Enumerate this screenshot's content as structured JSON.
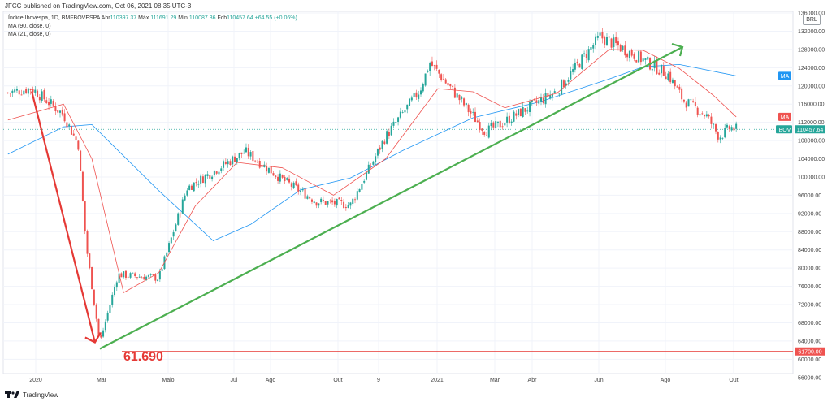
{
  "header": {
    "published": "JFCC published on TradingView.com, Oct 06, 2021 08:35 UTC-3",
    "symbol_line": "Índice Ibovespa, 1D, BMFBOVESPA",
    "ohlc": [
      {
        "label": "Abr",
        "value": "110397.37"
      },
      {
        "label": "Máx.",
        "value": "111691.29"
      },
      {
        "label": "Mín.",
        "value": "110087.36"
      },
      {
        "label": "Fch",
        "value": "110457.64"
      }
    ],
    "change": "+64.55 (+0.06%)",
    "ma90": "MA (90, close, 0)",
    "ma21": "MA (21, close, 0)"
  },
  "currency": "BRL",
  "annotation": {
    "low_label": "61.690"
  },
  "price_tags": {
    "ma_upper": "MA",
    "ma_lower": "MA",
    "ibov": "IBOV",
    "ibov_value": "110457.64",
    "support_value": "61700.00"
  },
  "footer": {
    "brand": "TradingView"
  },
  "colors": {
    "up": "#26a69a",
    "down": "#ef5350",
    "ma21": "#ef5350",
    "ma90": "#2196f3",
    "trendline": "#4caf50",
    "arrow": "#e53935"
  },
  "chart_data": {
    "type": "candlestick",
    "title": "Índice Ibovespa, 1D, BMFBOVESPA",
    "xlabel": "",
    "ylabel": "",
    "ylim": [
      54000,
      136000
    ],
    "yticks": [
      56000,
      60000,
      64000,
      68000,
      72000,
      76000,
      80000,
      84000,
      88000,
      92000,
      96000,
      100000,
      104000,
      108000,
      112000,
      116000,
      120000,
      124000,
      128000,
      132000,
      136000
    ],
    "ytick_labels": [
      "56000.00",
      "60000.00",
      "64000.00",
      "68000.00",
      "72000.00",
      "76000.00",
      "80000.00",
      "84000.00",
      "88000.00",
      "92000.00",
      "96000.00",
      "100000.00",
      "104000.00",
      "108000.00",
      "112000.00",
      "116000.00",
      "120000.00",
      "124000.00",
      "128000.00",
      "132000.00",
      "136000.00"
    ],
    "xtick_labels": [
      "2020",
      "Mar",
      "Maio",
      "Jul",
      "Ago",
      "Out",
      "9",
      "2021",
      "Mar",
      "Abr",
      "Jun",
      "Ago",
      "Out"
    ],
    "grid": true,
    "price_series": [
      {
        "t": "2020-01-02",
        "close": 118500
      },
      {
        "t": "2020-01-23",
        "close": 119500
      },
      {
        "t": "2020-02-20",
        "close": 113700
      },
      {
        "t": "2020-03-04",
        "close": 107000
      },
      {
        "t": "2020-03-11",
        "close": 85000
      },
      {
        "t": "2020-03-23",
        "close": 63600
      },
      {
        "t": "2020-04-08",
        "close": 78600
      },
      {
        "t": "2020-05-14",
        "close": 77800
      },
      {
        "t": "2020-06-08",
        "close": 97600
      },
      {
        "t": "2020-07-29",
        "close": 105600
      },
      {
        "t": "2020-08-31",
        "close": 99400
      },
      {
        "t": "2020-09-30",
        "close": 94600
      },
      {
        "t": "2020-10-30",
        "close": 93900
      },
      {
        "t": "2020-11-30",
        "close": 108900
      },
      {
        "t": "2020-12-30",
        "close": 119000
      },
      {
        "t": "2021-01-08",
        "close": 125100
      },
      {
        "t": "2021-02-26",
        "close": 110000
      },
      {
        "t": "2021-03-09",
        "close": 111300
      },
      {
        "t": "2021-04-30",
        "close": 118900
      },
      {
        "t": "2021-06-07",
        "close": 130800
      },
      {
        "t": "2021-07-06",
        "close": 127000
      },
      {
        "t": "2021-08-06",
        "close": 122500
      },
      {
        "t": "2021-08-19",
        "close": 117000
      },
      {
        "t": "2021-09-09",
        "close": 113400
      },
      {
        "t": "2021-09-20",
        "close": 108800
      },
      {
        "t": "2021-09-30",
        "close": 110900
      },
      {
        "t": "2021-10-05",
        "close": 110457.64
      }
    ],
    "ma90": [
      {
        "t": "2020-01-02",
        "value": 105000
      },
      {
        "t": "2020-02-20",
        "value": 111000
      },
      {
        "t": "2020-03-16",
        "value": 111500
      },
      {
        "t": "2020-05-14",
        "value": 97000
      },
      {
        "t": "2020-07-01",
        "value": 86000
      },
      {
        "t": "2020-08-03",
        "value": 89600
      },
      {
        "t": "2020-09-16",
        "value": 97200
      },
      {
        "t": "2020-10-30",
        "value": 99800
      },
      {
        "t": "2020-12-15",
        "value": 105800
      },
      {
        "t": "2021-02-15",
        "value": 113000
      },
      {
        "t": "2021-04-15",
        "value": 116500
      },
      {
        "t": "2021-06-15",
        "value": 121500
      },
      {
        "t": "2021-07-15",
        "value": 124200
      },
      {
        "t": "2021-08-16",
        "value": 124700
      },
      {
        "t": "2021-10-05",
        "value": 122200
      }
    ],
    "ma21": [
      {
        "t": "2020-01-02",
        "value": 112500
      },
      {
        "t": "2020-02-20",
        "value": 116000
      },
      {
        "t": "2020-03-16",
        "value": 104000
      },
      {
        "t": "2020-04-13",
        "value": 74600
      },
      {
        "t": "2020-05-14",
        "value": 79000
      },
      {
        "t": "2020-06-15",
        "value": 93600
      },
      {
        "t": "2020-07-22",
        "value": 103200
      },
      {
        "t": "2020-08-31",
        "value": 102000
      },
      {
        "t": "2020-10-15",
        "value": 96000
      },
      {
        "t": "2020-11-30",
        "value": 104000
      },
      {
        "t": "2021-01-15",
        "value": 119400
      },
      {
        "t": "2021-02-15",
        "value": 118700
      },
      {
        "t": "2021-03-15",
        "value": 115200
      },
      {
        "t": "2021-04-30",
        "value": 118400
      },
      {
        "t": "2021-06-15",
        "value": 128000
      },
      {
        "t": "2021-07-15",
        "value": 127800
      },
      {
        "t": "2021-08-16",
        "value": 123800
      },
      {
        "t": "2021-09-15",
        "value": 117900
      },
      {
        "t": "2021-10-05",
        "value": 113200
      }
    ],
    "annotations": {
      "down_arrow": {
        "from": {
          "t": "2020-01-23",
          "value": 118800
        },
        "to": {
          "t": "2020-03-23",
          "value": 63000
        }
      },
      "trendline": {
        "from": {
          "t": "2020-03-23",
          "value": 63000
        },
        "to": {
          "t": "2021-07-27",
          "value": 132500
        }
      },
      "support_level": 61700,
      "last_price": 110457.64,
      "ma21_last": 113200,
      "ma90_last": 122200
    }
  }
}
